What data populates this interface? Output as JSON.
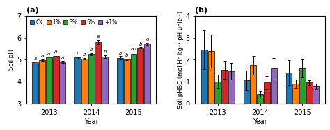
{
  "chart_data": [
    {
      "type": "bar",
      "title": "(a)",
      "xlabel": "Year",
      "ylabel": "Soil pH",
      "categories": [
        "2013",
        "2014",
        "2015"
      ],
      "ylim": [
        3,
        7
      ],
      "yticks": [
        3,
        4,
        5,
        6,
        7
      ],
      "legend": "upper left",
      "series": [
        {
          "name": "CK",
          "values": [
            4.88,
            5.1,
            5.08
          ],
          "errors": [
            0.04,
            0.04,
            0.08
          ],
          "annotations": [
            "a",
            "b",
            "b"
          ]
        },
        {
          "name": "1%",
          "values": [
            4.98,
            5.05,
            5.02
          ],
          "errors": [
            0.04,
            0.04,
            0.04
          ],
          "annotations": [
            "a",
            "b",
            "b"
          ]
        },
        {
          "name": "3%",
          "values": [
            5.1,
            5.25,
            5.28
          ],
          "errors": [
            0.04,
            0.06,
            0.06
          ],
          "annotations": [
            "a",
            "b",
            "ab"
          ]
        },
        {
          "name": "5%",
          "values": [
            5.18,
            5.8,
            5.52
          ],
          "errors": [
            0.04,
            0.1,
            0.06
          ],
          "annotations": [
            "a",
            "a",
            "b"
          ]
        },
        {
          "name": "+1%",
          "values": [
            4.9,
            5.15,
            5.73
          ],
          "errors": [
            0.04,
            0.06,
            0.05
          ],
          "annotations": [
            "a",
            "b",
            "a"
          ]
        }
      ]
    },
    {
      "type": "bar",
      "title": "(b)",
      "xlabel": "Year",
      "ylabel": "Soil pHBC (mol H⁺ kg⁻¹ pH unit⁻¹)",
      "categories": [
        "2013",
        "2014",
        "2015"
      ],
      "ylim": [
        0,
        4
      ],
      "yticks": [
        0,
        1,
        2,
        3,
        4
      ],
      "series": [
        {
          "name": "CK",
          "values": [
            2.45,
            1.08,
            1.42
          ],
          "errors": [
            0.88,
            0.45,
            0.55
          ]
        },
        {
          "name": "1%",
          "values": [
            2.38,
            1.75,
            0.92
          ],
          "errors": [
            0.75,
            0.42,
            0.18
          ]
        },
        {
          "name": "3%",
          "values": [
            1.02,
            0.46,
            1.6
          ],
          "errors": [
            0.3,
            0.12,
            0.4
          ]
        },
        {
          "name": "5%",
          "values": [
            1.55,
            0.97,
            0.97
          ],
          "errors": [
            0.4,
            0.3,
            0.1
          ]
        },
        {
          "name": "+1%",
          "values": [
            1.48,
            1.6,
            0.8
          ],
          "errors": [
            0.38,
            0.48,
            0.12
          ]
        }
      ]
    }
  ]
}
